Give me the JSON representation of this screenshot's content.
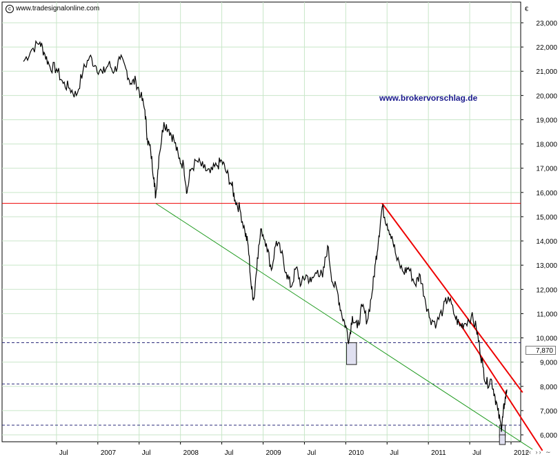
{
  "header": {
    "source": "www.tradesignalonline.com",
    "watermark": "www.brokervorschlag.de"
  },
  "axis": {
    "currency": "€",
    "last_price_label": "7,870"
  },
  "colors": {
    "price": "#000000",
    "red_line": "#ee0000",
    "green_line": "#00aa00",
    "dashed_blue": "#2a2a7a",
    "box_fill": "#e0e0f0",
    "grid": "#c8e6c8"
  },
  "chart_data": {
    "type": "line",
    "ylim": [
      5700,
      23500
    ],
    "y_ticks": [
      6000,
      7000,
      8000,
      9000,
      10000,
      11000,
      12000,
      13000,
      14000,
      15000,
      16000,
      17000,
      18000,
      19000,
      20000,
      21000,
      22000,
      23000
    ],
    "y_tick_labels": [
      "6,000",
      "7,000",
      "8,000",
      "9,000",
      "10,000",
      "11,000",
      "12,000",
      "13,000",
      "14,000",
      "15,000",
      "16,000",
      "17,000",
      "18,000",
      "19,000",
      "20,000",
      "21,000",
      "22,000",
      "23,000"
    ],
    "x_ticks": [
      {
        "label": "Jul",
        "t": 2006.5
      },
      {
        "label": "2007",
        "t": 2007.0
      },
      {
        "label": "Jul",
        "t": 2007.5
      },
      {
        "label": "2008",
        "t": 2008.0
      },
      {
        "label": "Jul",
        "t": 2008.5
      },
      {
        "label": "2009",
        "t": 2009.0
      },
      {
        "label": "Jul",
        "t": 2009.5
      },
      {
        "label": "2010",
        "t": 2010.0
      },
      {
        "label": "Jul",
        "t": 2010.5
      },
      {
        "label": "2011",
        "t": 2011.0
      },
      {
        "label": "Jul",
        "t": 2011.5
      },
      {
        "label": "2012",
        "t": 2012.0
      }
    ],
    "series": [
      {
        "points": [
          [
            2006.1,
            21400
          ],
          [
            2006.2,
            21900
          ],
          [
            2006.3,
            22200
          ],
          [
            2006.36,
            21700
          ],
          [
            2006.42,
            21200
          ],
          [
            2006.5,
            21100
          ],
          [
            2006.58,
            20500
          ],
          [
            2006.66,
            20300
          ],
          [
            2006.74,
            20000
          ],
          [
            2006.82,
            21000
          ],
          [
            2006.9,
            21600
          ],
          [
            2006.98,
            21200
          ],
          [
            2007.06,
            20900
          ],
          [
            2007.13,
            21300
          ],
          [
            2007.2,
            21000
          ],
          [
            2007.27,
            21500
          ],
          [
            2007.34,
            21100
          ],
          [
            2007.4,
            20500
          ],
          [
            2007.46,
            20600
          ],
          [
            2007.52,
            20000
          ],
          [
            2007.57,
            19400
          ],
          [
            2007.6,
            18200
          ],
          [
            2007.64,
            17700
          ],
          [
            2007.68,
            16600
          ],
          [
            2007.7,
            15800
          ],
          [
            2007.74,
            17500
          ],
          [
            2007.8,
            18900
          ],
          [
            2007.86,
            18600
          ],
          [
            2007.92,
            18200
          ],
          [
            2007.98,
            17400
          ],
          [
            2008.04,
            17100
          ],
          [
            2008.08,
            16000
          ],
          [
            2008.12,
            16900
          ],
          [
            2008.2,
            17300
          ],
          [
            2008.28,
            17000
          ],
          [
            2008.36,
            16800
          ],
          [
            2008.44,
            17100
          ],
          [
            2008.5,
            17300
          ],
          [
            2008.56,
            16800
          ],
          [
            2008.62,
            16300
          ],
          [
            2008.66,
            15700
          ],
          [
            2008.72,
            15300
          ],
          [
            2008.78,
            14400
          ],
          [
            2008.82,
            13800
          ],
          [
            2008.86,
            12000
          ],
          [
            2008.89,
            11600
          ],
          [
            2008.93,
            13300
          ],
          [
            2008.98,
            14500
          ],
          [
            2009.04,
            13900
          ],
          [
            2009.1,
            12800
          ],
          [
            2009.16,
            14000
          ],
          [
            2009.22,
            13500
          ],
          [
            2009.28,
            12700
          ],
          [
            2009.34,
            12100
          ],
          [
            2009.4,
            12900
          ],
          [
            2009.46,
            12200
          ],
          [
            2009.52,
            12600
          ],
          [
            2009.58,
            12300
          ],
          [
            2009.66,
            12800
          ],
          [
            2009.72,
            12500
          ],
          [
            2009.78,
            13800
          ],
          [
            2009.84,
            12300
          ],
          [
            2009.9,
            11900
          ],
          [
            2009.95,
            11000
          ],
          [
            2010.0,
            10500
          ],
          [
            2010.04,
            9900
          ],
          [
            2010.08,
            10900
          ],
          [
            2010.14,
            10400
          ],
          [
            2010.2,
            11300
          ],
          [
            2010.26,
            10700
          ],
          [
            2010.32,
            11900
          ],
          [
            2010.36,
            13100
          ],
          [
            2010.4,
            14200
          ],
          [
            2010.44,
            15400
          ],
          [
            2010.5,
            14700
          ],
          [
            2010.56,
            14200
          ],
          [
            2010.62,
            13200
          ],
          [
            2010.7,
            12700
          ],
          [
            2010.76,
            12900
          ],
          [
            2010.84,
            12200
          ],
          [
            2010.9,
            12600
          ],
          [
            2010.96,
            11600
          ],
          [
            2011.02,
            10800
          ],
          [
            2011.1,
            10600
          ],
          [
            2011.18,
            11200
          ],
          [
            2011.24,
            11700
          ],
          [
            2011.32,
            10900
          ],
          [
            2011.38,
            10500
          ],
          [
            2011.44,
            10600
          ],
          [
            2011.52,
            10900
          ],
          [
            2011.58,
            10400
          ],
          [
            2011.62,
            9600
          ],
          [
            2011.66,
            8800
          ],
          [
            2011.7,
            8100
          ],
          [
            2011.76,
            8300
          ],
          [
            2011.8,
            7700
          ],
          [
            2011.84,
            7000
          ],
          [
            2011.88,
            6300
          ],
          [
            2011.9,
            6700
          ],
          [
            2011.92,
            7300
          ],
          [
            2011.95,
            7870
          ]
        ]
      }
    ],
    "horizontal_lines": [
      {
        "y": 15550,
        "style": "solid",
        "color": "red"
      },
      {
        "y": 9800,
        "style": "dashed",
        "color": "blue"
      },
      {
        "y": 8100,
        "style": "dashed",
        "color": "blue"
      },
      {
        "y": 6400,
        "style": "dashed",
        "color": "blue"
      }
    ],
    "trendlines": [
      {
        "color": "green",
        "from": [
          2007.7,
          15550
        ],
        "to": [
          2012.26,
          5400
        ]
      },
      {
        "color": "red",
        "from": [
          2010.44,
          15550
        ],
        "to": [
          2012.14,
          7750
        ]
      },
      {
        "color": "red",
        "from": [
          2011.36,
          10700
        ],
        "to": [
          2012.38,
          5350
        ]
      }
    ],
    "boxes": [
      {
        "t0": 2010.01,
        "t1": 2010.13,
        "y0": 8900,
        "y1": 9800
      },
      {
        "t0": 2011.86,
        "t1": 2011.93,
        "y0": 5900,
        "y1": 6400
      },
      {
        "t0": 2011.86,
        "t1": 2011.93,
        "y0": 5600,
        "y1": 6000
      }
    ]
  }
}
